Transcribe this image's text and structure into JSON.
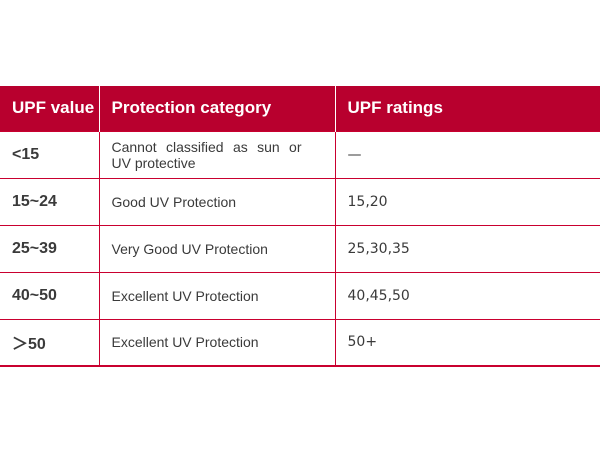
{
  "table": {
    "headers": [
      "UPF value",
      "Protection category",
      "UPF ratings"
    ],
    "rows": [
      {
        "value": "<15",
        "category_line1": "Cannot  classified  as  sun  or",
        "category_line2": "UV protective",
        "rating": "—"
      },
      {
        "value": "15~24",
        "category": "Good UV Protection",
        "rating": "15,20"
      },
      {
        "value": "25~39",
        "category": "Very Good UV Protection",
        "rating": "25,30,35"
      },
      {
        "value": "40~50",
        "category": "Excellent UV Protection",
        "rating": "40,45,50"
      },
      {
        "value": "＞50",
        "category": "Excellent UV Protection",
        "rating": "50+"
      }
    ]
  },
  "colors": {
    "header_bg": "#b8002e",
    "border": "#c9002f",
    "header_text": "#ffffff",
    "body_text": "#3a3a3a"
  }
}
